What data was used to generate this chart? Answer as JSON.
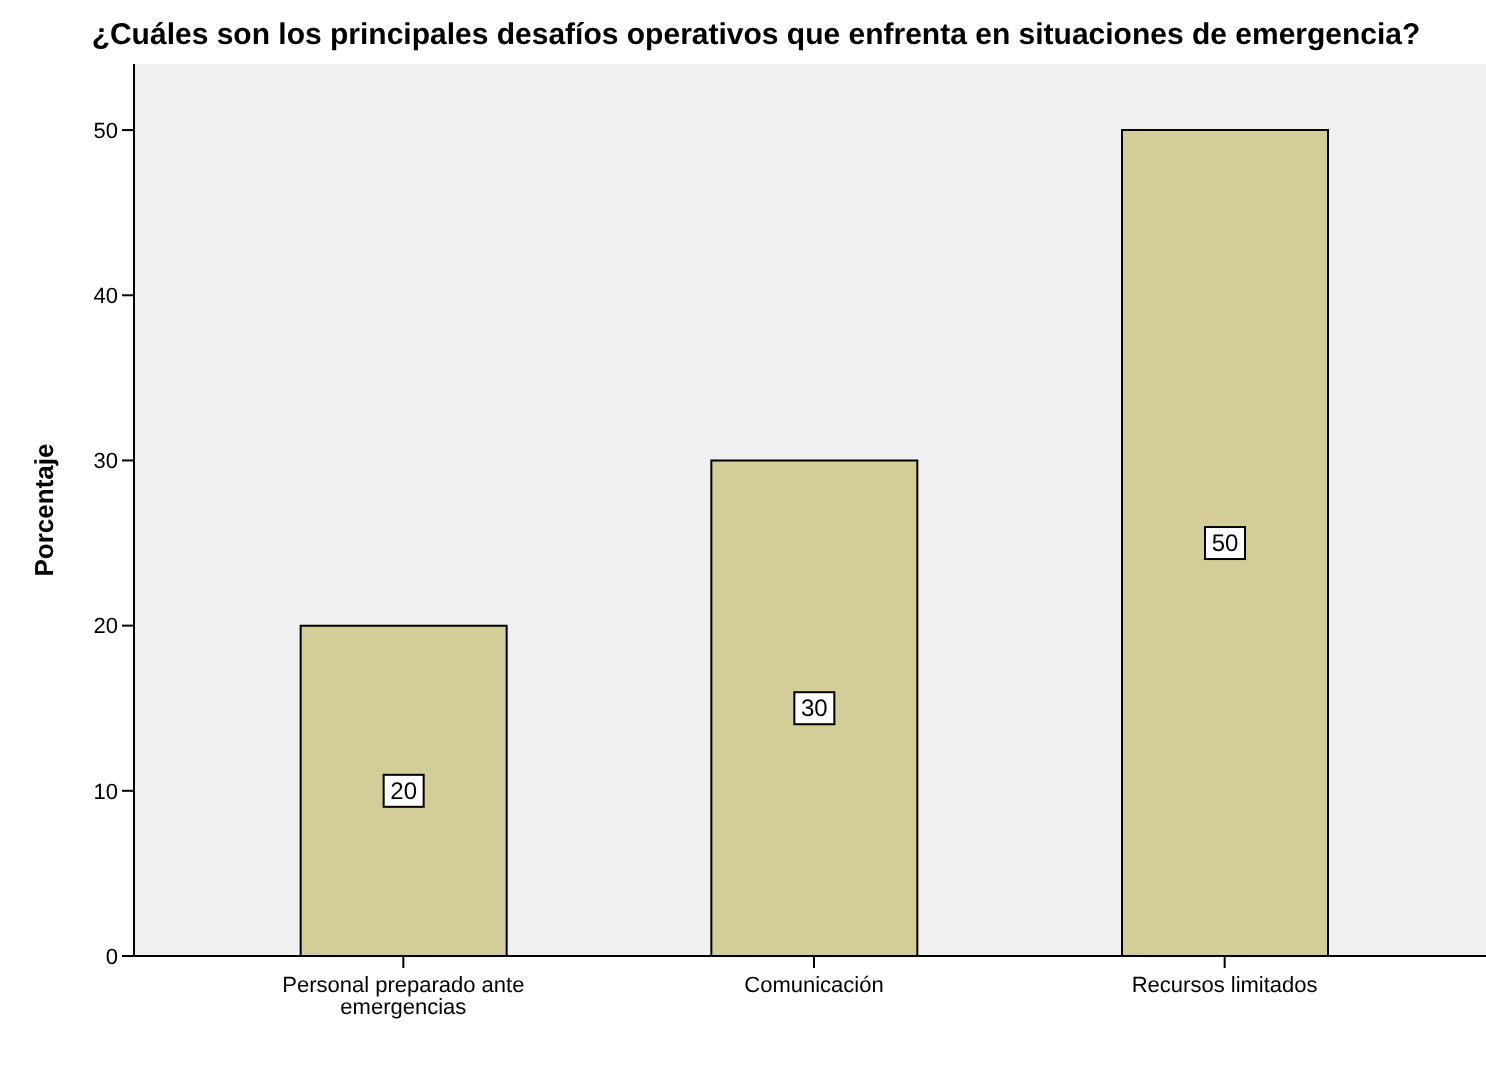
{
  "chart_data": {
    "type": "bar",
    "title": "¿Cuáles son los principales desafíos operativos que enfrenta en situaciones de emergencia?",
    "ylabel": "Porcentaje",
    "categories": [
      "Personal preparado ante emergencias",
      "Comunicación",
      "Recursos limitados"
    ],
    "values": [
      20,
      30,
      50
    ],
    "color": "#d3ce97",
    "ylim": [
      0,
      54
    ],
    "yticks": [
      0,
      10,
      20,
      30,
      40,
      50
    ],
    "data_labels": true,
    "grid": false
  }
}
